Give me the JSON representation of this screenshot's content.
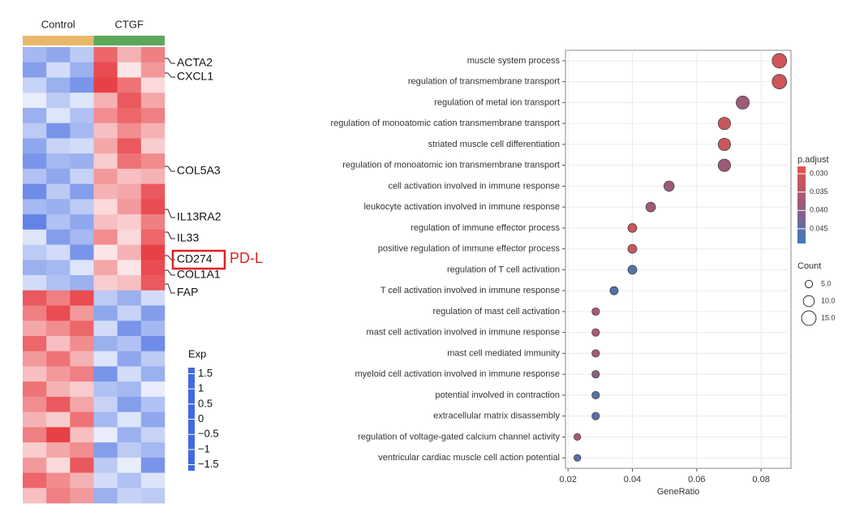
{
  "chart_data": [
    {
      "type": "heatmap",
      "groups": [
        {
          "name": "Control",
          "color": "#e8b86a"
        },
        {
          "name": "CTGF",
          "color": "#5ba85b"
        }
      ],
      "matrix": [
        [
          -0.8,
          -1.0,
          -0.6,
          1.2,
          0.6,
          1.0
        ],
        [
          -1.1,
          -0.4,
          -0.9,
          1.4,
          0.2,
          0.8
        ],
        [
          -0.5,
          -0.9,
          -1.2,
          1.5,
          1.1,
          0.3
        ],
        [
          -0.2,
          -0.6,
          -0.3,
          0.6,
          1.3,
          0.7
        ],
        [
          -0.9,
          -0.3,
          -0.7,
          0.9,
          1.2,
          1.0
        ],
        [
          -0.6,
          -1.2,
          -0.8,
          0.5,
          0.9,
          0.6
        ],
        [
          -1.0,
          -0.5,
          -0.4,
          0.7,
          1.3,
          0.4
        ],
        [
          -1.2,
          -0.8,
          -0.9,
          0.4,
          1.1,
          0.9
        ],
        [
          -0.7,
          -1.0,
          -0.5,
          0.8,
          0.5,
          0.6
        ],
        [
          -1.3,
          -0.6,
          -1.1,
          0.6,
          0.7,
          1.3
        ],
        [
          -0.8,
          -0.9,
          -0.6,
          0.3,
          0.8,
          1.4
        ],
        [
          -1.4,
          -0.7,
          -1.0,
          0.5,
          0.4,
          1.0
        ],
        [
          -0.3,
          -1.1,
          -0.8,
          0.9,
          0.3,
          1.2
        ],
        [
          -0.6,
          -0.4,
          -1.2,
          0.2,
          0.6,
          1.5
        ],
        [
          -0.9,
          -0.8,
          -0.3,
          0.7,
          0.2,
          1.4
        ],
        [
          -0.4,
          -0.7,
          -0.9,
          0.4,
          0.5,
          1.3
        ],
        [
          1.3,
          1.0,
          1.4,
          -0.6,
          -0.9,
          -0.4
        ],
        [
          1.0,
          1.4,
          0.8,
          -1.0,
          -0.5,
          -1.1
        ],
        [
          0.7,
          0.9,
          1.2,
          -0.4,
          -1.2,
          -0.8
        ],
        [
          1.2,
          0.5,
          0.9,
          -0.9,
          -0.7,
          -1.3
        ],
        [
          0.8,
          1.1,
          0.6,
          -0.3,
          -1.0,
          -0.6
        ],
        [
          0.5,
          0.8,
          1.0,
          -1.2,
          -0.4,
          -0.9
        ],
        [
          1.1,
          0.6,
          0.4,
          -0.7,
          -0.8,
          -0.2
        ],
        [
          0.9,
          1.3,
          0.7,
          -0.5,
          -1.1,
          -0.7
        ],
        [
          0.6,
          0.4,
          1.1,
          -0.8,
          -0.3,
          -1.0
        ],
        [
          1.0,
          1.5,
          0.5,
          -0.2,
          -0.9,
          -0.5
        ],
        [
          0.4,
          0.7,
          0.9,
          -1.1,
          -0.6,
          -0.8
        ],
        [
          0.8,
          0.3,
          1.3,
          -0.6,
          -0.2,
          -1.2
        ],
        [
          1.2,
          0.9,
          0.6,
          -0.4,
          -0.7,
          -0.3
        ],
        [
          0.5,
          1.0,
          0.8,
          -0.9,
          -0.5,
          -0.6
        ]
      ],
      "gene_labels": [
        "ACTA2",
        "CXCL1",
        "COL5A3",
        "IL13RA2",
        "IL33",
        "CD274",
        "COL1A1",
        "FAP"
      ],
      "highlight": "CD274",
      "highlight_note": "PD-L",
      "legend_title": "Exp",
      "colors": [
        "#4169e1",
        "#ffffff",
        "#e4262c"
      ],
      "color_lim": [
        -1.7,
        1.7
      ],
      "color_ticks": [
        1.5,
        1,
        0.5,
        0,
        {
          "value": -0.5,
          "label": "−0.5"
        },
        {
          "value": -1,
          "label": "−1"
        },
        {
          "value": -1.5,
          "label": "−1.5"
        }
      ]
    },
    {
      "type": "dot",
      "categories": [
        "muscle system process",
        "regulation of transmembrane transport",
        "regulation of metal ion transport",
        "regulation of monoatomic cation transmembrane transport",
        "striated muscle cell differentiation",
        "regulation of monoatomic ion transmembrane transport",
        "cell activation involved in immune response",
        "leukocyte activation involved in immune response",
        "regulation of immune effector process",
        "positive regulation of immune effector process",
        "regulation of T cell activation",
        "T cell activation involved in immune response",
        "regulation of mast cell activation",
        "mast cell activation involved in immune response",
        "mast cell mediated immunity",
        "myeloid cell activation involved in immune response",
        "potential involved in contraction",
        "extracellular matrix disassembly",
        "regulation of voltage-gated calcium channel activity",
        "ventricular cardiac muscle cell action potential"
      ],
      "values": [
        0.0857,
        0.0857,
        0.0743,
        0.0686,
        0.0686,
        0.0686,
        0.0514,
        0.0457,
        0.04,
        0.04,
        0.04,
        0.0343,
        0.0286,
        0.0286,
        0.0286,
        0.0286,
        0.0286,
        0.0286,
        0.0229,
        0.0229
      ],
      "sizes": [
        15,
        15,
        13,
        12,
        12,
        12,
        9,
        8,
        7,
        7,
        7,
        6,
        5,
        5,
        5,
        5,
        5,
        5,
        4,
        4
      ],
      "color_values": [
        0.031,
        0.031,
        0.038,
        0.032,
        0.032,
        0.038,
        0.038,
        0.038,
        0.032,
        0.032,
        0.046,
        0.046,
        0.036,
        0.036,
        0.036,
        0.04,
        0.046,
        0.046,
        0.036,
        0.046
      ],
      "x_label": "GeneRatio",
      "xlim": [
        0.0192,
        0.0893
      ],
      "xticks": [
        0.02,
        0.04,
        0.06,
        0.08
      ],
      "grid": true,
      "color_title": "p.adjust",
      "colors": [
        "#e5534b",
        "#9a5a7a",
        "#3b7bbf"
      ],
      "color_lim": [
        0.028,
        0.049
      ],
      "color_ticks": [
        {
          "value": 0.03,
          "label": "0.030"
        },
        {
          "value": 0.035,
          "label": "0.035"
        },
        {
          "value": 0.04,
          "label": "0.040"
        },
        {
          "value": 0.045,
          "label": "0.045"
        }
      ],
      "size_title": "Count",
      "size_ticks": [
        {
          "value": 5,
          "label": "5.0"
        },
        {
          "value": 10,
          "label": "10.0"
        },
        {
          "value": 15,
          "label": "15.0"
        }
      ]
    }
  ]
}
